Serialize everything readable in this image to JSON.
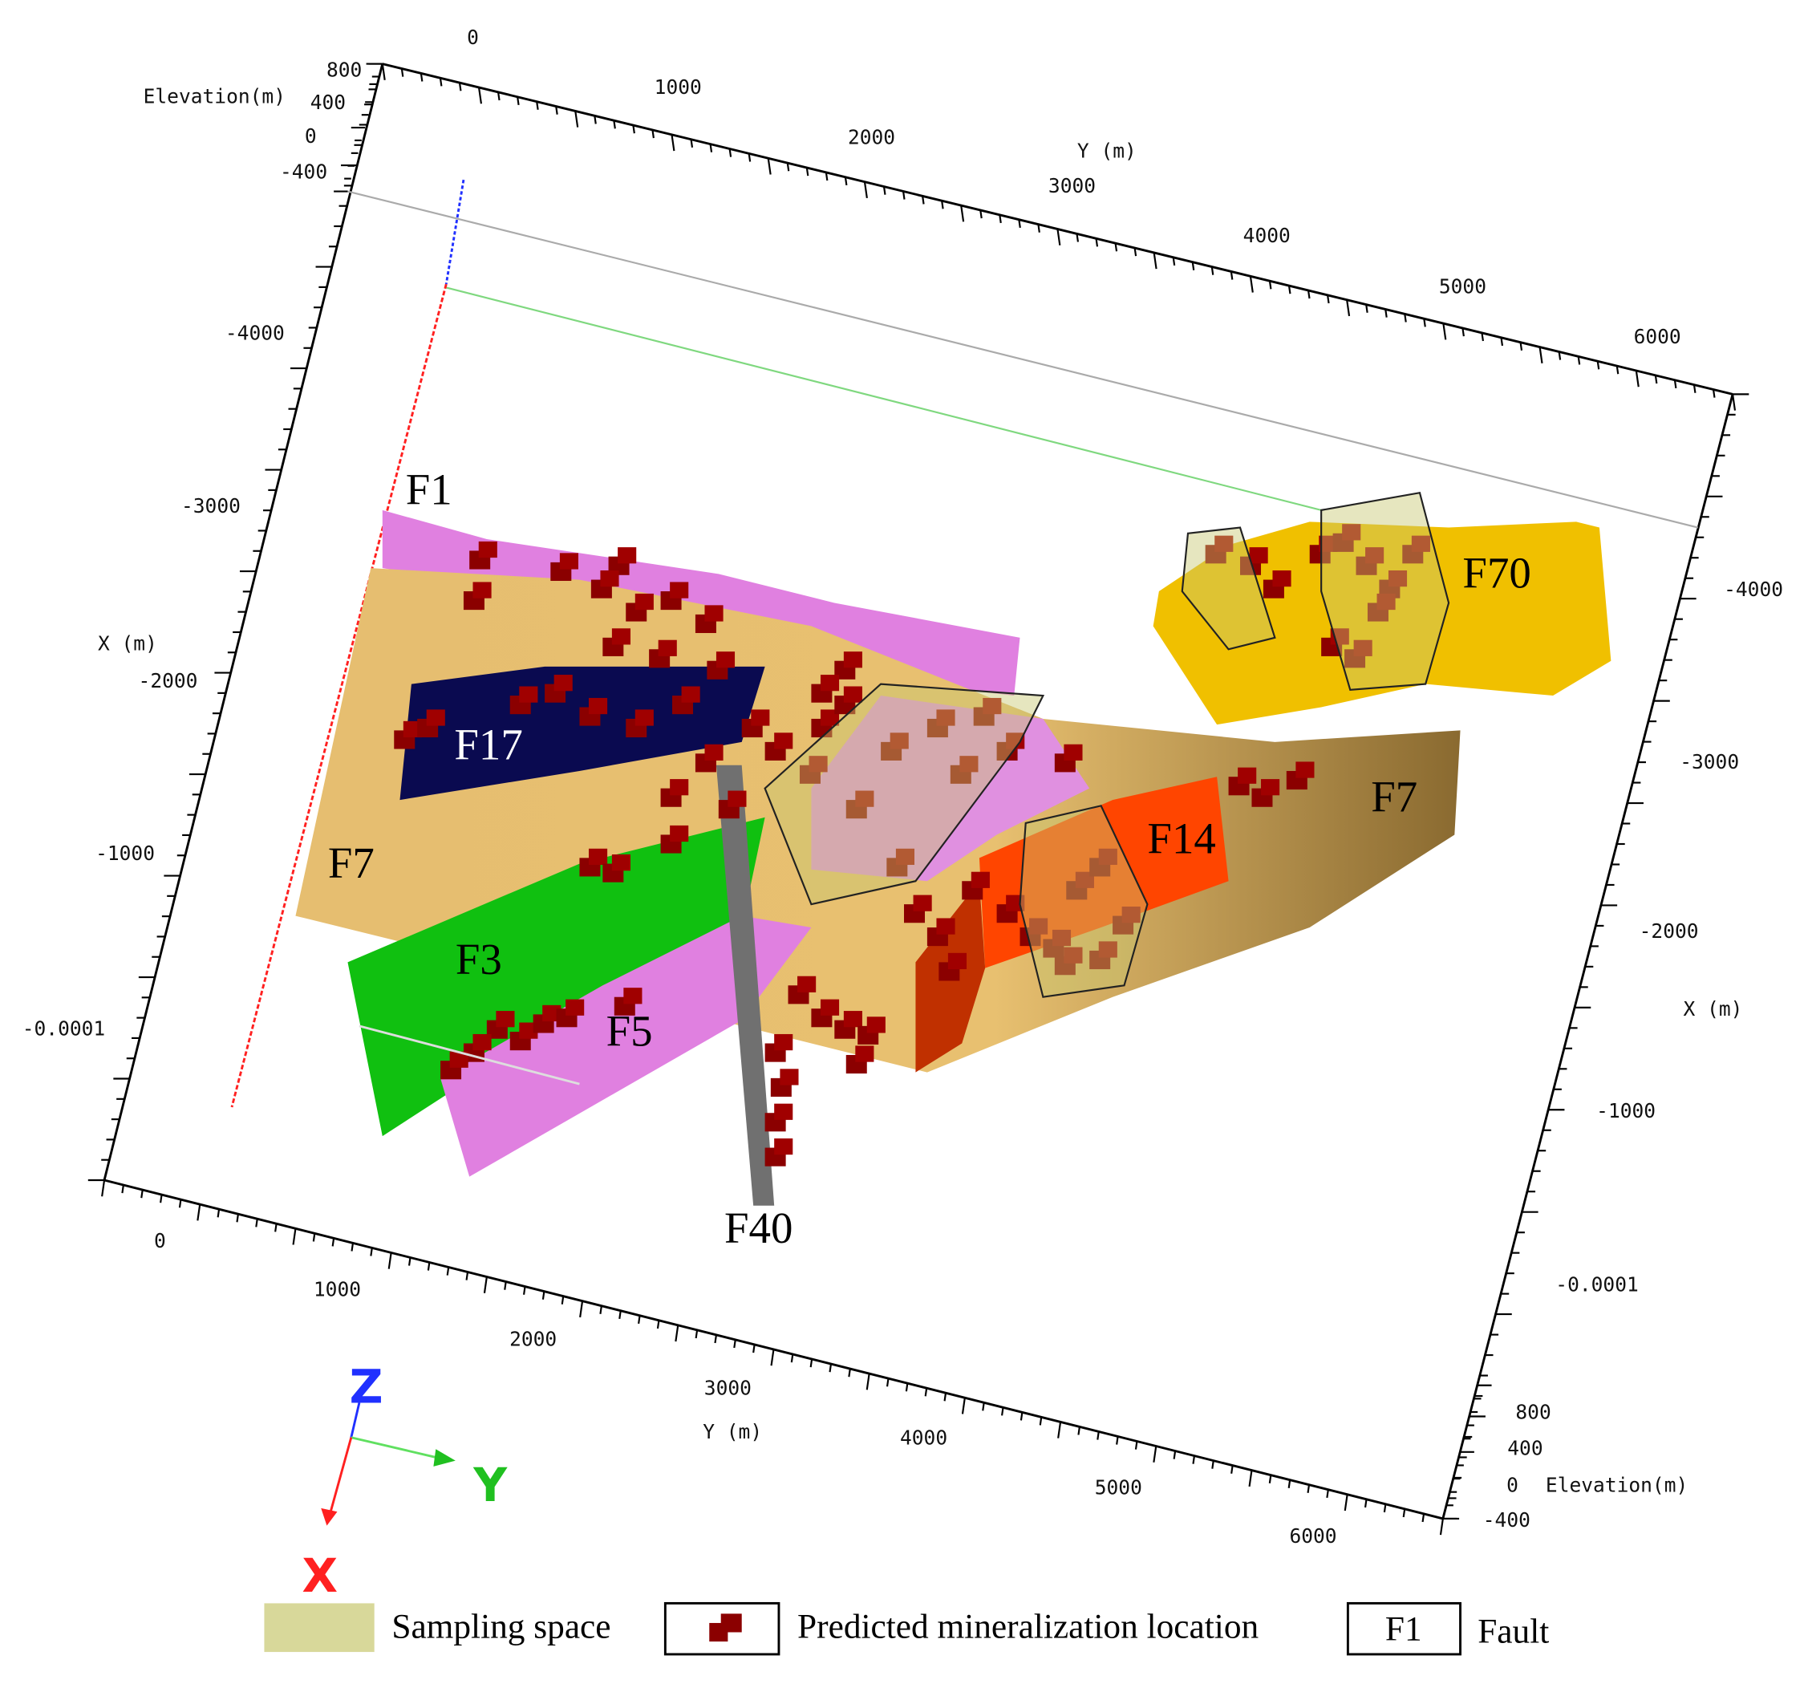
{
  "axes": {
    "top_y": {
      "label": "Y (m)",
      "ticks": [
        "0",
        "1000",
        "2000",
        "3000",
        "4000",
        "5000",
        "6000"
      ]
    },
    "bottom_y": {
      "label": "Y (m)",
      "ticks": [
        "0",
        "1000",
        "2000",
        "3000",
        "4000",
        "5000",
        "6000"
      ]
    },
    "left_x": {
      "label": "X (m)",
      "ticks": [
        "-4000",
        "-3000",
        "-2000",
        "-1000",
        "-0.0001"
      ]
    },
    "right_x": {
      "label": "X (m)",
      "ticks": [
        "-4000",
        "-3000",
        "-2000",
        "-1000",
        "-0.0001"
      ]
    },
    "top_elevation": {
      "label": "Elevation(m)",
      "ticks": [
        "800",
        "400",
        "0",
        "-400"
      ]
    },
    "bottom_elevation": {
      "label": "Elevation(m)",
      "ticks": [
        "800",
        "400",
        "0",
        "-400"
      ]
    }
  },
  "faults": [
    {
      "label": "F1"
    },
    {
      "label": "F17"
    },
    {
      "label": "F7"
    },
    {
      "label": "F3"
    },
    {
      "label": "F5"
    },
    {
      "label": "F40"
    },
    {
      "label": "F14"
    },
    {
      "label": "F70"
    },
    {
      "label": "F7"
    }
  ],
  "triad": {
    "z": "Z",
    "y": "Y",
    "x": "X"
  },
  "legend": [
    {
      "label": "Sampling space"
    },
    {
      "label": "Predicted mineralization location"
    },
    {
      "label": "Fault",
      "sample": "F1"
    }
  ]
}
